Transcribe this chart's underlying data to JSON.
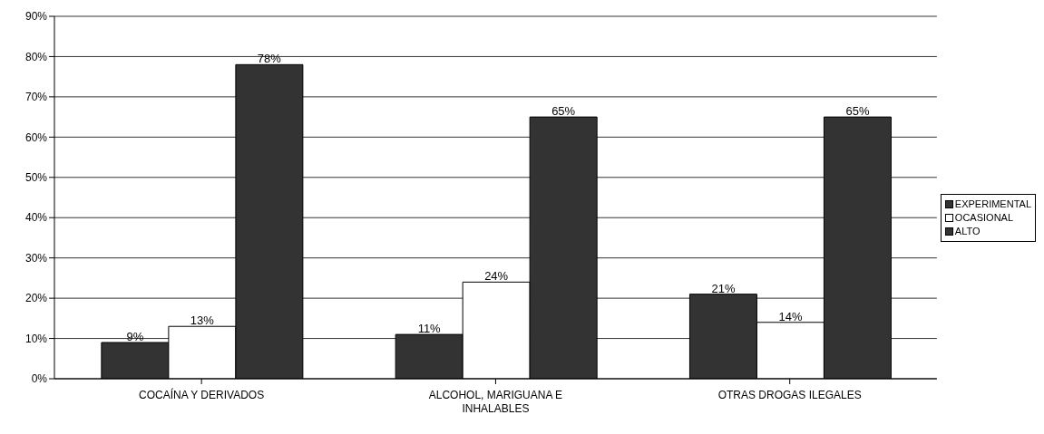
{
  "chart_data": {
    "type": "bar",
    "categories": [
      "COCAÍNA Y DERIVADOS",
      "ALCOHOL, MARIGUANA E INHALABLES",
      "OTRAS DROGAS ILEGALES"
    ],
    "series": [
      {
        "name": "EXPERIMENTAL",
        "color": "#333333",
        "values": [
          9,
          11,
          21
        ],
        "value_labels": [
          "9%",
          "11%",
          "21%"
        ]
      },
      {
        "name": "OCASIONAL",
        "color": "#ffffff",
        "values": [
          13,
          24,
          14
        ],
        "value_labels": [
          "13%",
          "24%",
          "14%"
        ]
      },
      {
        "name": "ALTO",
        "color": "#333333",
        "values": [
          78,
          65,
          65
        ],
        "value_labels": [
          "78%",
          "65%",
          "65%"
        ]
      }
    ],
    "ylim": [
      0,
      90
    ],
    "yticks": [
      {
        "value": 0,
        "label": "0%"
      },
      {
        "value": 10,
        "label": "10%"
      },
      {
        "value": 20,
        "label": "20%"
      },
      {
        "value": 30,
        "label": "30%"
      },
      {
        "value": 40,
        "label": "40%"
      },
      {
        "value": 50,
        "label": "50%"
      },
      {
        "value": 60,
        "label": "60%"
      },
      {
        "value": 70,
        "label": "70%"
      },
      {
        "value": 80,
        "label": "80%"
      },
      {
        "value": 90,
        "label": "90%"
      }
    ],
    "grid": "y",
    "legend": "right"
  }
}
